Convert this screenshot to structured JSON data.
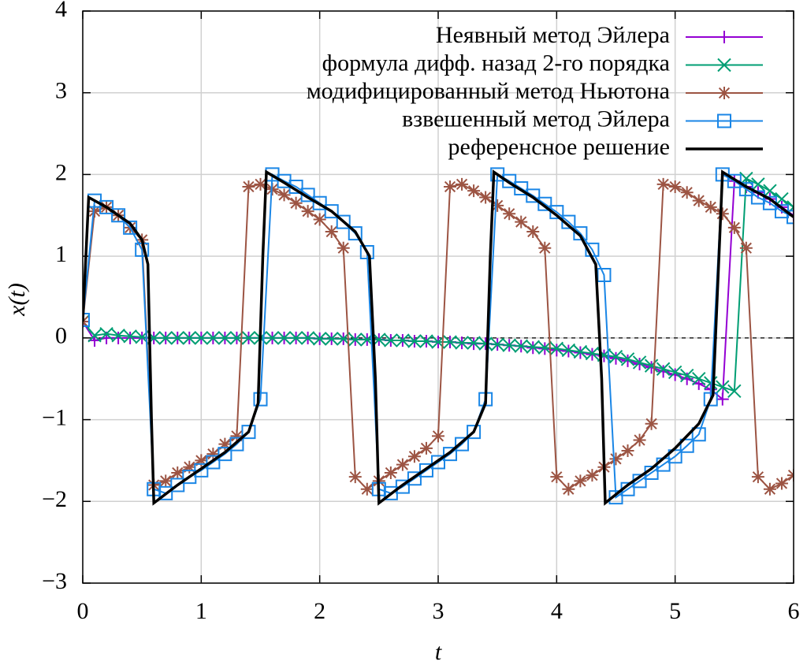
{
  "chart_data": {
    "type": "line",
    "xlabel": "t",
    "ylabel": "x(t)",
    "xlim": [
      0,
      6
    ],
    "ylim": [
      -3,
      4
    ],
    "xticks": [
      0,
      1,
      2,
      3,
      4,
      5,
      6
    ],
    "yticks": [
      {
        "value": -3,
        "label": "−3"
      },
      {
        "value": -2,
        "label": "−2"
      },
      {
        "value": -1,
        "label": "−1"
      },
      0,
      1,
      2,
      3,
      4
    ],
    "grid": true,
    "zero_line": true,
    "legend": "top-right",
    "x": [
      0,
      0.1,
      0.2,
      0.3,
      0.4,
      0.5,
      0.6,
      0.7,
      0.8,
      0.9,
      1,
      1.1,
      1.2,
      1.3,
      1.4,
      1.5,
      1.6,
      1.7,
      1.8,
      1.9,
      2,
      2.1,
      2.2,
      2.3,
      2.4,
      2.5,
      2.6,
      2.7,
      2.8,
      2.9,
      3,
      3.1,
      3.2,
      3.3,
      3.4,
      3.5,
      3.6,
      3.7,
      3.8,
      3.9,
      4,
      4.1,
      4.2,
      4.3,
      4.4,
      4.5,
      4.6,
      4.7,
      4.8,
      4.9,
      5,
      5.1,
      5.2,
      5.3,
      5.4,
      5.5,
      5.6,
      5.7,
      5.8,
      5.9,
      6
    ],
    "series": [
      {
        "name": "Неявный метод Эйлера",
        "color": "#9400d3",
        "marker": "plus",
        "values": [
          0.2,
          -0.03,
          0,
          0,
          0,
          0,
          0,
          0,
          0,
          0,
          0,
          0,
          0,
          0,
          0,
          0,
          0,
          0,
          0,
          0,
          -0.01,
          -0.01,
          -0.01,
          -0.02,
          -0.02,
          -0.02,
          -0.03,
          -0.03,
          -0.04,
          -0.04,
          -0.05,
          -0.05,
          -0.06,
          -0.07,
          -0.07,
          -0.08,
          -0.09,
          -0.1,
          -0.12,
          -0.13,
          -0.15,
          -0.16,
          -0.18,
          -0.2,
          -0.22,
          -0.25,
          -0.28,
          -0.32,
          -0.36,
          -0.41,
          -0.45,
          -0.5,
          -0.56,
          -0.63,
          -0.75,
          1.92,
          1.85,
          1.78,
          1.7,
          1.6,
          1.5
        ]
      },
      {
        "name": "формула дифф. назад 2-го порядка",
        "color": "#009e73",
        "marker": "cross",
        "values": [
          0.2,
          0.03,
          0.05,
          0.03,
          0.02,
          0.01,
          0,
          0,
          0,
          0,
          0,
          0,
          0,
          0,
          0,
          0,
          0,
          0,
          0,
          0,
          -0.01,
          -0.01,
          -0.01,
          -0.02,
          -0.02,
          -0.02,
          -0.03,
          -0.03,
          -0.04,
          -0.04,
          -0.05,
          -0.05,
          -0.06,
          -0.06,
          -0.07,
          -0.08,
          -0.09,
          -0.1,
          -0.11,
          -0.12,
          -0.13,
          -0.15,
          -0.17,
          -0.19,
          -0.21,
          -0.23,
          -0.26,
          -0.3,
          -0.34,
          -0.38,
          -0.42,
          -0.46,
          -0.5,
          -0.55,
          -0.6,
          -0.65,
          1.95,
          1.88,
          1.8,
          1.7,
          1.6
        ]
      },
      {
        "name": "модифицированный метод Ньютона",
        "color": "#9c5443",
        "marker": "star",
        "values": [
          0.2,
          1.55,
          1.6,
          1.5,
          1.35,
          1.2,
          -1.8,
          -1.75,
          -1.65,
          -1.58,
          -1.5,
          -1.42,
          -1.3,
          -1.2,
          1.85,
          1.88,
          1.82,
          1.75,
          1.65,
          1.55,
          1.45,
          1.3,
          1.1,
          -1.7,
          -1.85,
          -1.75,
          -1.65,
          -1.55,
          -1.45,
          -1.35,
          -1.2,
          1.85,
          1.88,
          1.8,
          1.72,
          1.62,
          1.52,
          1.42,
          1.3,
          1.1,
          -1.7,
          -1.85,
          -1.75,
          -1.68,
          -1.58,
          -1.48,
          -1.38,
          -1.25,
          -1.05,
          1.88,
          1.85,
          1.78,
          1.68,
          1.6,
          1.52,
          1.35,
          1.1,
          -1.7,
          -1.85,
          -1.78,
          -1.68
        ]
      },
      {
        "name": "взвешенный метод Эйлера",
        "color": "#1a86e6",
        "marker": "square",
        "values": [
          0.22,
          1.68,
          1.6,
          1.5,
          1.35,
          1.08,
          -1.85,
          -1.9,
          -1.8,
          -1.7,
          -1.62,
          -1.52,
          -1.42,
          -1.3,
          -1.15,
          -0.75,
          2.0,
          1.92,
          1.85,
          1.75,
          1.65,
          1.55,
          1.42,
          1.28,
          1.05,
          -1.85,
          -1.9,
          -1.82,
          -1.72,
          -1.62,
          -1.52,
          -1.42,
          -1.3,
          -1.15,
          -0.75,
          2.0,
          1.92,
          1.83,
          1.74,
          1.64,
          1.54,
          1.42,
          1.28,
          1.08,
          0.77,
          -1.95,
          -1.85,
          -1.75,
          -1.65,
          -1.55,
          -1.45,
          -1.32,
          -1.18,
          -0.75,
          2.0,
          1.92,
          1.82,
          1.72,
          1.65,
          1.55,
          1.48
        ]
      },
      {
        "name": "референсное решение",
        "color": "#000000",
        "marker": "none",
        "x": [
          0,
          0.05,
          0.2,
          0.4,
          0.5,
          0.55,
          0.58,
          0.6,
          0.8,
          1.0,
          1.2,
          1.4,
          1.48,
          1.52,
          1.55,
          1.7,
          1.9,
          2.1,
          2.3,
          2.42,
          2.47,
          2.5,
          2.7,
          2.9,
          3.1,
          3.3,
          3.4,
          3.44,
          3.47,
          3.6,
          3.8,
          4.0,
          4.2,
          4.33,
          4.38,
          4.41,
          4.6,
          4.8,
          5.0,
          5.2,
          5.32,
          5.37,
          5.4,
          5.6,
          5.8,
          6.0
        ],
        "values": [
          0.2,
          1.72,
          1.6,
          1.4,
          1.2,
          0.9,
          -1.0,
          -2.02,
          -1.8,
          -1.6,
          -1.4,
          -1.15,
          -0.8,
          1.0,
          2.03,
          1.9,
          1.72,
          1.55,
          1.3,
          1.0,
          -0.5,
          -2.02,
          -1.8,
          -1.6,
          -1.4,
          -1.15,
          -0.8,
          1.0,
          2.03,
          1.9,
          1.72,
          1.5,
          1.25,
          0.9,
          -0.5,
          -2.02,
          -1.8,
          -1.6,
          -1.35,
          -1.05,
          -0.7,
          1.0,
          2.03,
          1.85,
          1.7,
          1.48
        ]
      }
    ]
  }
}
